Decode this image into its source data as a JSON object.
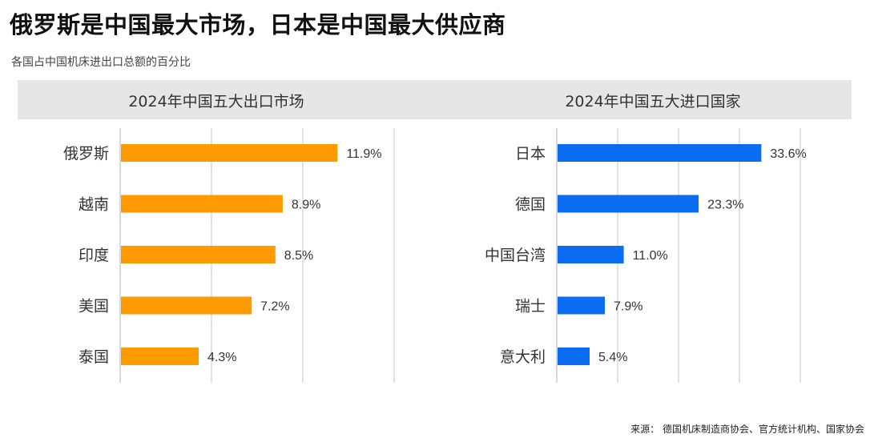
{
  "headline": "俄罗斯是中国最大市场，日本是中国最大供应商",
  "subtitle": "各国占中国机床进出口总额的百分比",
  "source": "来源：  德国机床制造商协会、官方统计机构、国家协会",
  "colors": {
    "export_bar": "#ff9a00",
    "import_bar": "#0a6cf0",
    "gridline": "#d9d9d9",
    "header_bg": "#e6e6e6"
  },
  "chart_data": [
    {
      "type": "bar",
      "orientation": "horizontal",
      "title": "2024年中国五大出口市场",
      "categories": [
        "俄罗斯",
        "越南",
        "印度",
        "美国",
        "泰国"
      ],
      "values": [
        11.9,
        8.9,
        8.5,
        7.2,
        4.3
      ],
      "value_labels": [
        "11.9%",
        "8.9%",
        "8.5%",
        "7.2%",
        "4.3%"
      ],
      "xlim": [
        0,
        15
      ],
      "grid_step": 5,
      "grid": true
    },
    {
      "type": "bar",
      "orientation": "horizontal",
      "title": "2024年中国五大进口国家",
      "categories": [
        "日本",
        "德国",
        "中国台湾",
        "瑞士",
        "意大利"
      ],
      "values": [
        33.6,
        23.3,
        11.0,
        7.9,
        5.4
      ],
      "value_labels": [
        "33.6%",
        "23.3%",
        "11.0%",
        "7.9%",
        "5.4%"
      ],
      "xlim": [
        0,
        45
      ],
      "grid_step": 10,
      "grid": true
    }
  ]
}
